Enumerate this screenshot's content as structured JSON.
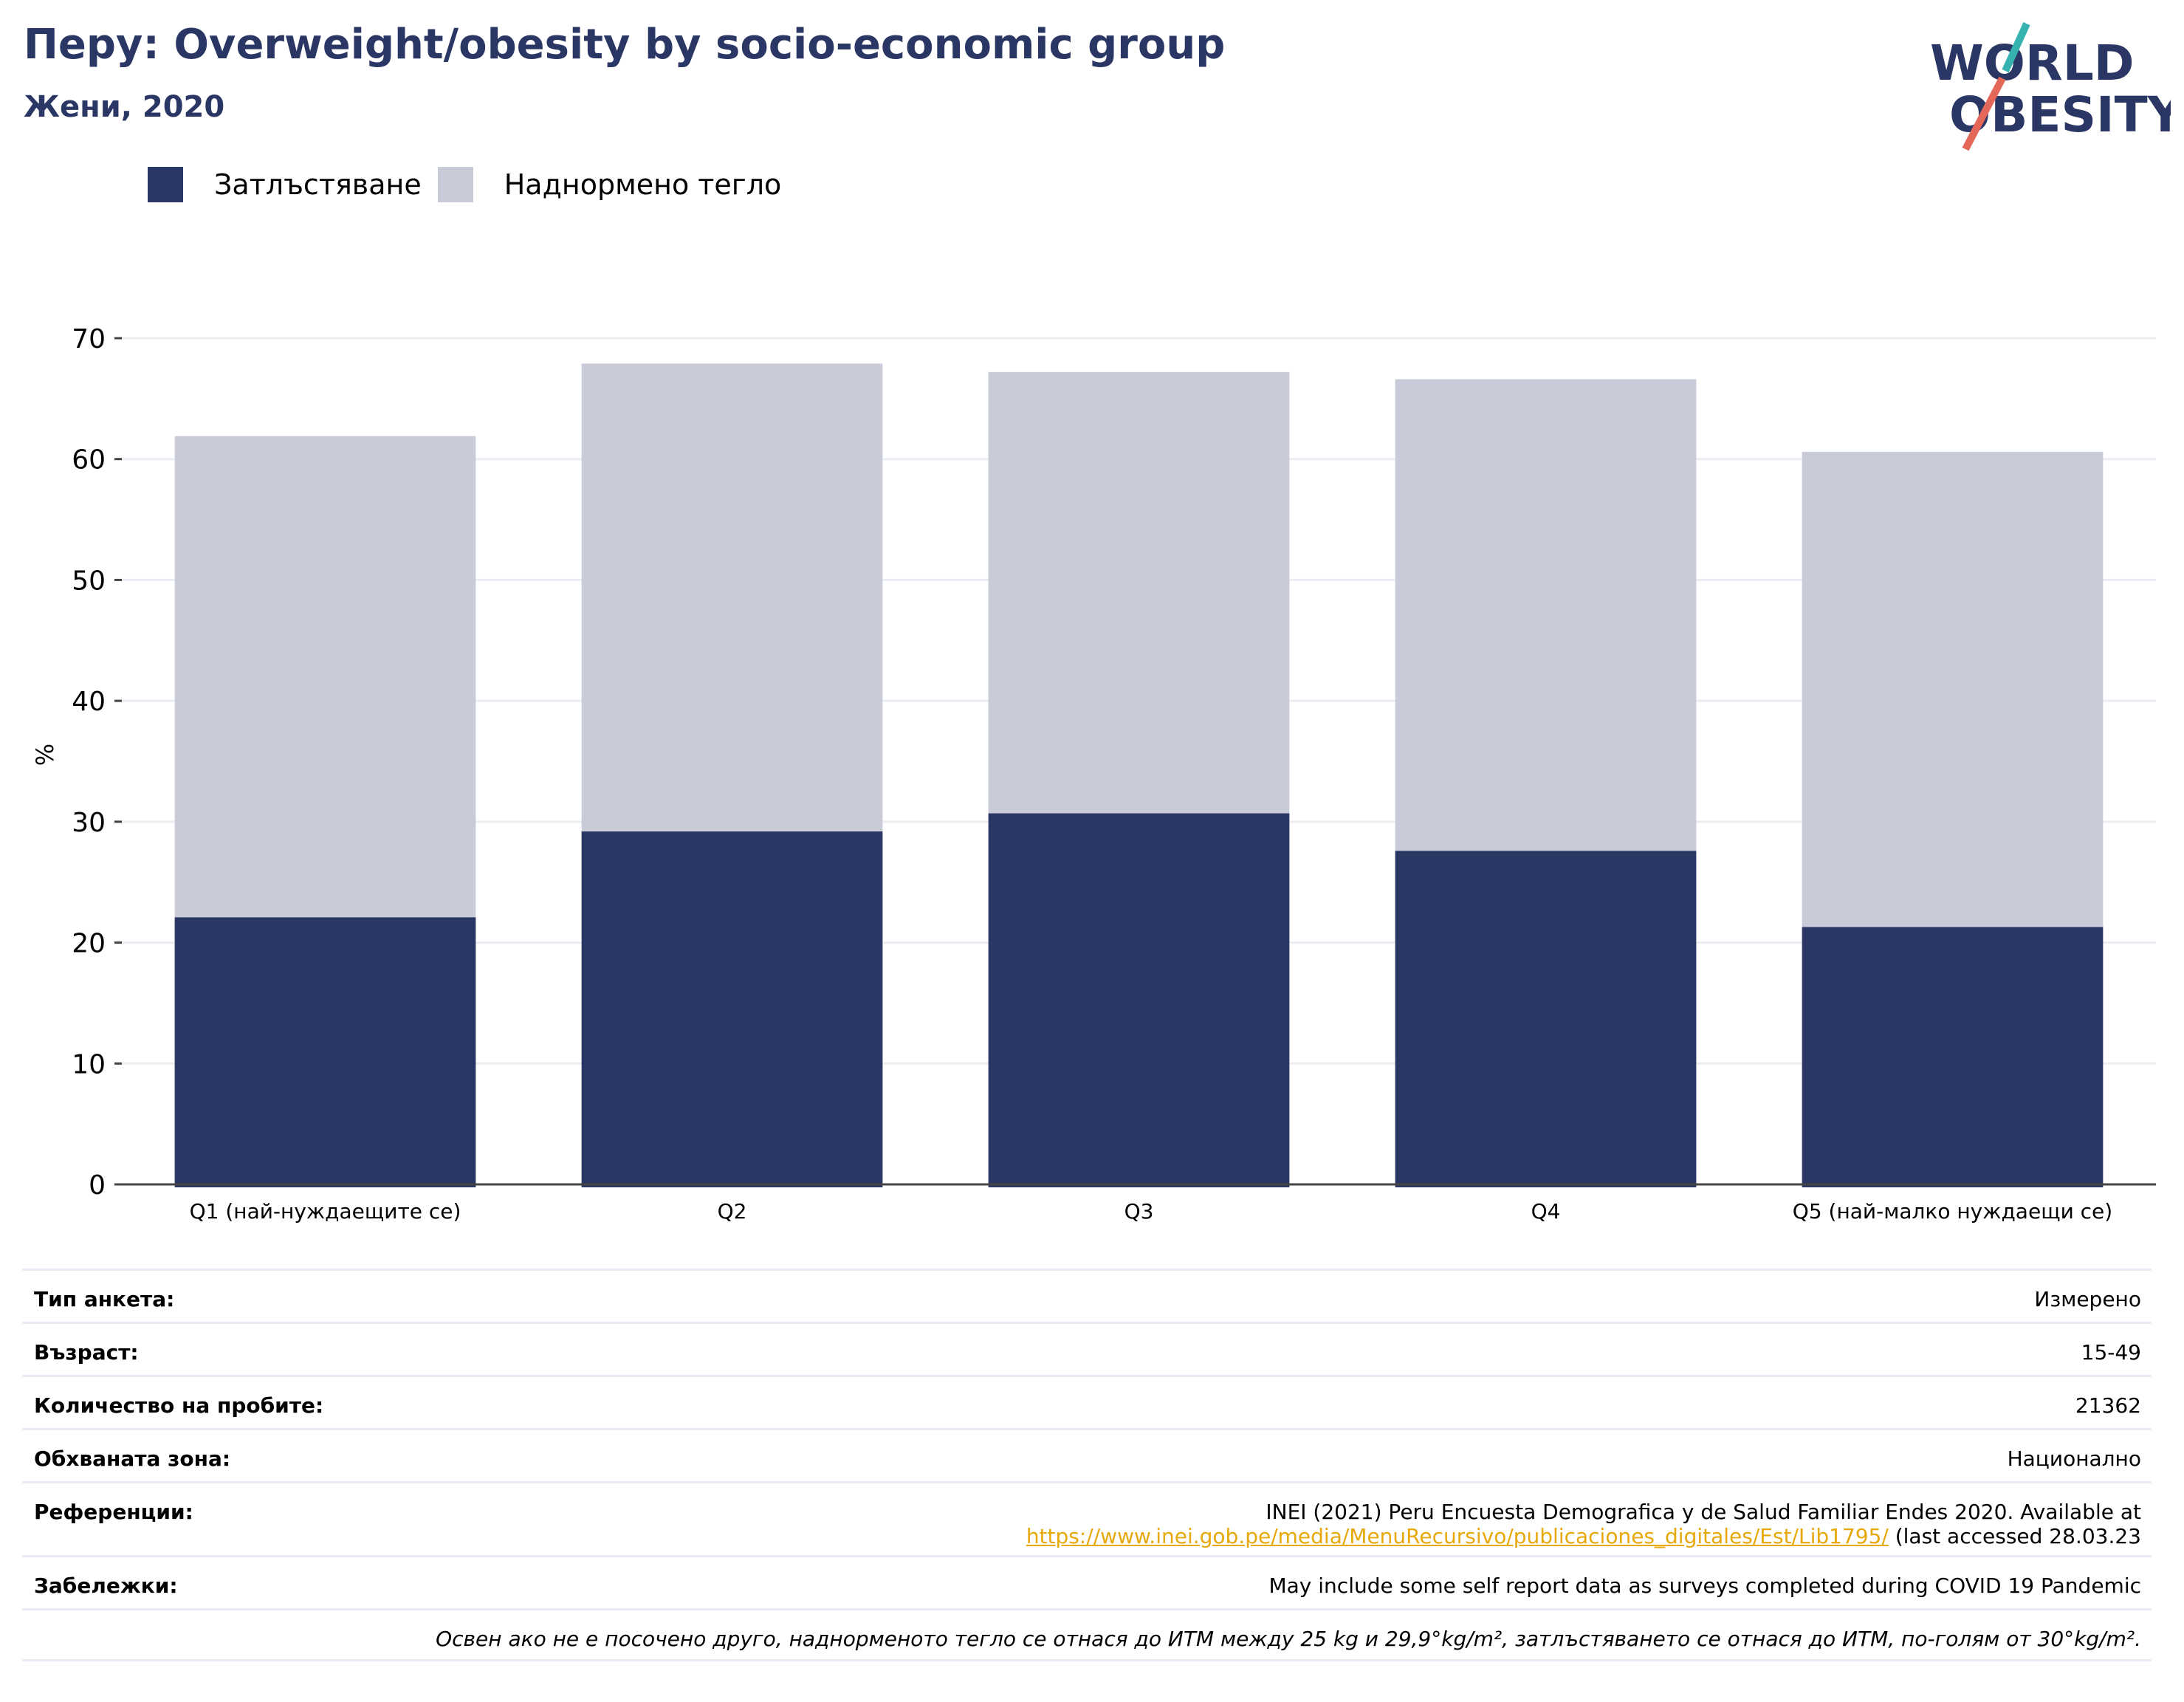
{
  "header": {
    "title": "Перу: Overweight/obesity by socio-economic group",
    "subtitle": "Жени, 2020"
  },
  "logo": {
    "line1": "WORLD",
    "line2": "OBESITY",
    "colors": {
      "text": "#2a3663",
      "slash_red": "#e4685a",
      "slash_teal": "#36b3b0"
    }
  },
  "legend": [
    {
      "label": "Затлъстяване",
      "color": "#2a3663"
    },
    {
      "label": "Наднормено тегло",
      "color": "#c9ccd8"
    }
  ],
  "chart_data": {
    "type": "bar",
    "stacked": true,
    "categories": [
      "Q1 (най-нуждаещите се)",
      "Q2",
      "Q3",
      "Q4",
      "Q5 (най-малко нуждаещи се)"
    ],
    "series": [
      {
        "name": "Затлъстяване",
        "color": "#2a3663",
        "values": [
          22.1,
          29.2,
          30.7,
          27.6,
          21.3
        ]
      },
      {
        "name": "Наднормено тегло",
        "color": "#c9ccd8",
        "values": [
          39.8,
          38.7,
          36.5,
          39.0,
          39.3
        ]
      }
    ],
    "ylabel": "%",
    "ylim": [
      0,
      70
    ],
    "yticks": [
      0,
      10,
      20,
      30,
      40,
      50,
      60,
      70
    ],
    "grid": true
  },
  "meta": {
    "survey_type": {
      "label": "Тип анкета:",
      "value": "Измерено"
    },
    "age": {
      "label": "Възраст:",
      "value": "15-49"
    },
    "sample_size": {
      "label": "Количество на пробите:",
      "value": "21362"
    },
    "coverage": {
      "label": "Обхваната зона:",
      "value": "Национално"
    },
    "references": {
      "label": "Референции:",
      "line1": "INEI (2021) Peru Encuesta Demografica y de Salud Familiar Endes 2020. Available at",
      "link": "https://www.inei.gob.pe/media/MenuRecursivo/publicaciones_digitales/Est/Lib1795/",
      "suffix": " (last accessed 28.03.23"
    },
    "notes": {
      "label": "Забележки:",
      "value": "May include some self report data as surveys completed during COVID 19 Pandemic"
    },
    "footnote": "Освен ако не е посочено друго, наднорменото тегло се отнася до ИТМ между 25 kg и 29,9°kg/m², затлъстяването се отнася до ИТМ, по-голям от 30°kg/m²."
  }
}
